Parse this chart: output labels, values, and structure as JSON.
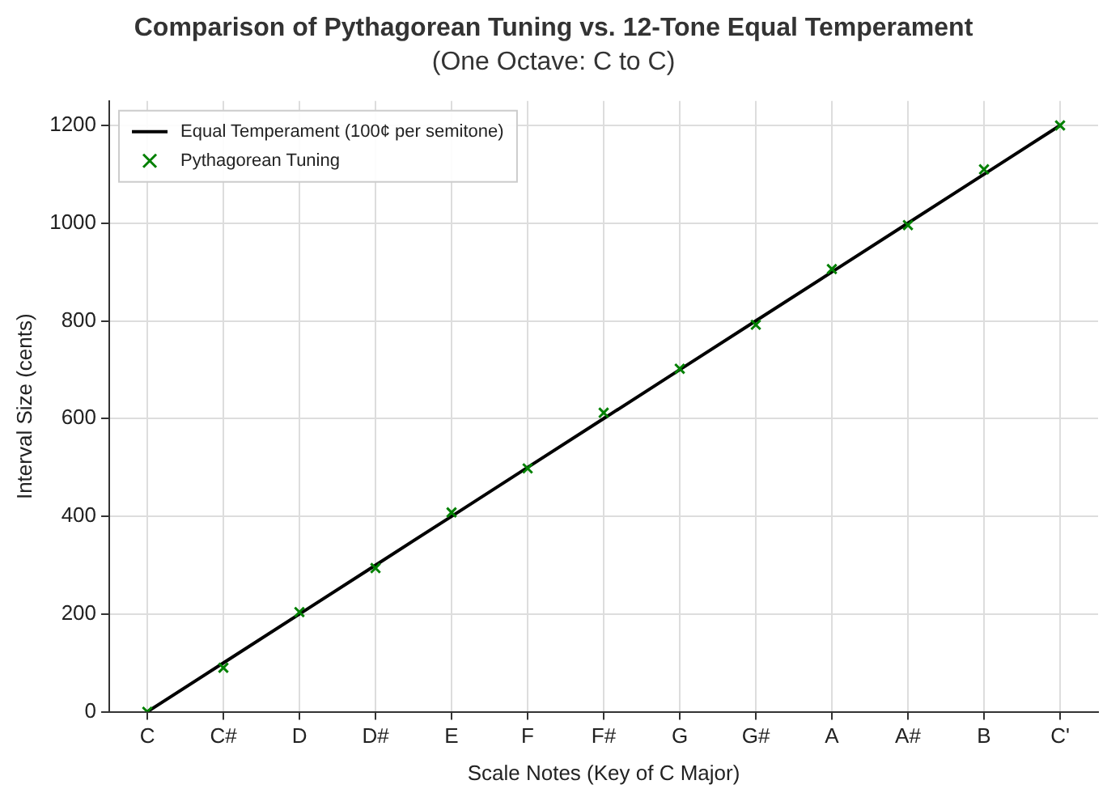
{
  "chart_data": {
    "type": "line",
    "title": "Comparison of Pythagorean Tuning vs. 12-Tone Equal Temperament",
    "subtitle": "(One Octave: C to C)",
    "xlabel": "Scale Notes (Key of C Major)",
    "ylabel": "Interval Size (cents)",
    "categories": [
      "C",
      "C#",
      "D",
      "D#",
      "E",
      "F",
      "F#",
      "G",
      "G#",
      "A",
      "A#",
      "B",
      "C'"
    ],
    "series": [
      {
        "name": "Equal Temperament (100¢ per semitone)",
        "type": "line",
        "color": "#000000",
        "marker": "none",
        "line_style": "solid",
        "values": [
          0,
          100,
          200,
          300,
          400,
          500,
          600,
          700,
          800,
          900,
          1000,
          1100,
          1200
        ]
      },
      {
        "name": "Pythagorean Tuning",
        "type": "scatter",
        "color": "#008000",
        "marker": "cross",
        "values": [
          0,
          90,
          204,
          294,
          408,
          498,
          612,
          702,
          792,
          906,
          996,
          1110,
          1200
        ]
      }
    ],
    "ylim": [
      0,
      1250
    ],
    "yticks": [
      0,
      200,
      400,
      600,
      800,
      1000,
      1200
    ],
    "grid": true,
    "legend": "top left"
  }
}
